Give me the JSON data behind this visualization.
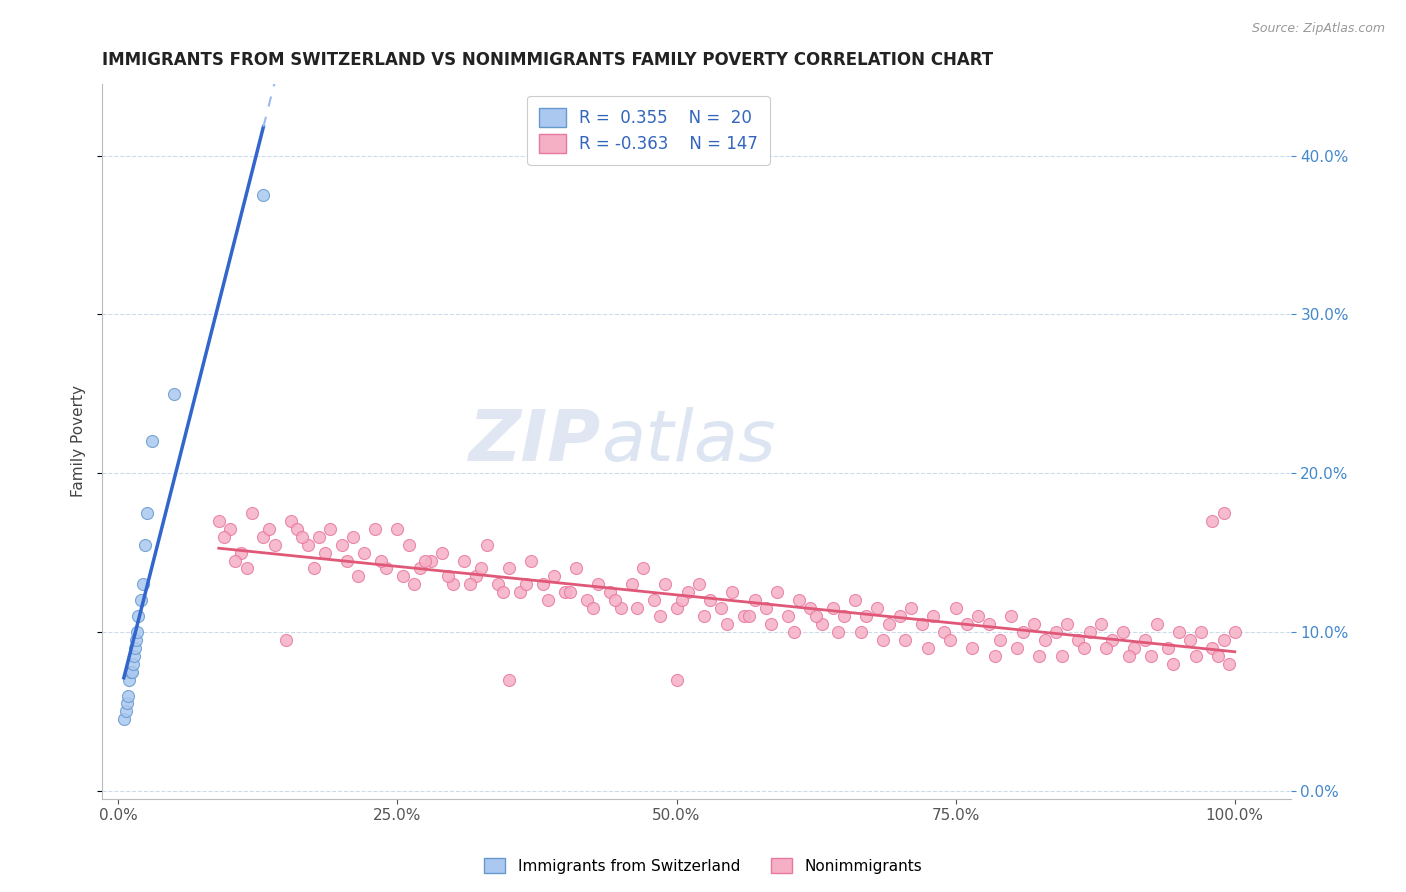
{
  "title": "IMMIGRANTS FROM SWITZERLAND VS NONIMMIGRANTS FAMILY POVERTY CORRELATION CHART",
  "source": "Source: ZipAtlas.com",
  "ylabel": "Family Poverty",
  "legend_label1": "Immigrants from Switzerland",
  "legend_label2": "Nonimmigrants",
  "R1": 0.355,
  "N1": 20,
  "R2": -0.363,
  "N2": 147,
  "blue_color": "#aac8f0",
  "blue_edge_color": "#6699cc",
  "pink_color": "#f5b0c5",
  "pink_edge_color": "#e878a0",
  "trend_line_color_blue": "#3366cc",
  "trend_line_color_pink": "#e05878",
  "trend_line_dashed_blue": "#99bbee",
  "background_color": "#ffffff",
  "title_fontsize": 12,
  "axis_label_fontsize": 11,
  "tick_fontsize": 11,
  "right_tick_color": "#4488cc",
  "scatter_size": 75,
  "blue_x": [
    0.005,
    0.007,
    0.008,
    0.009,
    0.01,
    0.011,
    0.012,
    0.013,
    0.014,
    0.015,
    0.016,
    0.017,
    0.018,
    0.02,
    0.022,
    0.024,
    0.026,
    0.03,
    0.05,
    0.13
  ],
  "blue_y": [
    0.045,
    0.05,
    0.055,
    0.06,
    0.07,
    0.075,
    0.075,
    0.08,
    0.085,
    0.09,
    0.095,
    0.1,
    0.11,
    0.12,
    0.13,
    0.155,
    0.175,
    0.22,
    0.25,
    0.375
  ],
  "pink_x": [
    0.09,
    0.1,
    0.11,
    0.12,
    0.13,
    0.14,
    0.155,
    0.16,
    0.17,
    0.18,
    0.19,
    0.2,
    0.21,
    0.22,
    0.23,
    0.24,
    0.25,
    0.26,
    0.27,
    0.28,
    0.29,
    0.3,
    0.31,
    0.32,
    0.33,
    0.34,
    0.35,
    0.36,
    0.37,
    0.38,
    0.39,
    0.4,
    0.41,
    0.42,
    0.43,
    0.44,
    0.45,
    0.46,
    0.47,
    0.48,
    0.49,
    0.5,
    0.51,
    0.52,
    0.53,
    0.54,
    0.55,
    0.56,
    0.57,
    0.58,
    0.59,
    0.6,
    0.61,
    0.62,
    0.63,
    0.64,
    0.65,
    0.66,
    0.67,
    0.68,
    0.69,
    0.7,
    0.71,
    0.72,
    0.73,
    0.74,
    0.75,
    0.76,
    0.77,
    0.78,
    0.79,
    0.8,
    0.81,
    0.82,
    0.83,
    0.84,
    0.85,
    0.86,
    0.87,
    0.88,
    0.89,
    0.9,
    0.91,
    0.92,
    0.93,
    0.94,
    0.95,
    0.96,
    0.97,
    0.98,
    0.99,
    1.0,
    0.095,
    0.105,
    0.115,
    0.135,
    0.165,
    0.175,
    0.185,
    0.205,
    0.215,
    0.235,
    0.255,
    0.265,
    0.275,
    0.295,
    0.315,
    0.325,
    0.345,
    0.365,
    0.385,
    0.405,
    0.425,
    0.445,
    0.465,
    0.485,
    0.505,
    0.525,
    0.545,
    0.565,
    0.585,
    0.605,
    0.625,
    0.645,
    0.665,
    0.685,
    0.705,
    0.725,
    0.745,
    0.765,
    0.785,
    0.805,
    0.825,
    0.845,
    0.865,
    0.885,
    0.905,
    0.925,
    0.945,
    0.965,
    0.985,
    0.995,
    0.15,
    0.35,
    0.5,
    0.98,
    0.99
  ],
  "pink_y": [
    0.17,
    0.165,
    0.15,
    0.175,
    0.16,
    0.155,
    0.17,
    0.165,
    0.155,
    0.16,
    0.165,
    0.155,
    0.16,
    0.15,
    0.165,
    0.14,
    0.165,
    0.155,
    0.14,
    0.145,
    0.15,
    0.13,
    0.145,
    0.135,
    0.155,
    0.13,
    0.14,
    0.125,
    0.145,
    0.13,
    0.135,
    0.125,
    0.14,
    0.12,
    0.13,
    0.125,
    0.115,
    0.13,
    0.14,
    0.12,
    0.13,
    0.115,
    0.125,
    0.13,
    0.12,
    0.115,
    0.125,
    0.11,
    0.12,
    0.115,
    0.125,
    0.11,
    0.12,
    0.115,
    0.105,
    0.115,
    0.11,
    0.12,
    0.11,
    0.115,
    0.105,
    0.11,
    0.115,
    0.105,
    0.11,
    0.1,
    0.115,
    0.105,
    0.11,
    0.105,
    0.095,
    0.11,
    0.1,
    0.105,
    0.095,
    0.1,
    0.105,
    0.095,
    0.1,
    0.105,
    0.095,
    0.1,
    0.09,
    0.095,
    0.105,
    0.09,
    0.1,
    0.095,
    0.1,
    0.09,
    0.095,
    0.1,
    0.16,
    0.145,
    0.14,
    0.165,
    0.16,
    0.14,
    0.15,
    0.145,
    0.135,
    0.145,
    0.135,
    0.13,
    0.145,
    0.135,
    0.13,
    0.14,
    0.125,
    0.13,
    0.12,
    0.125,
    0.115,
    0.12,
    0.115,
    0.11,
    0.12,
    0.11,
    0.105,
    0.11,
    0.105,
    0.1,
    0.11,
    0.1,
    0.1,
    0.095,
    0.095,
    0.09,
    0.095,
    0.09,
    0.085,
    0.09,
    0.085,
    0.085,
    0.09,
    0.09,
    0.085,
    0.085,
    0.08,
    0.085,
    0.085,
    0.08,
    0.095,
    0.07,
    0.07,
    0.17,
    0.175
  ]
}
